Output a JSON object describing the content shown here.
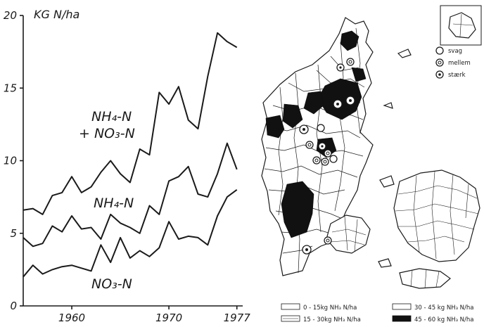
{
  "chart_data": [
    {
      "type": "line",
      "title": "",
      "ylabel": "KG N/ha",
      "xlabel": "",
      "ylim": [
        0,
        20
      ],
      "xlim": [
        1955,
        1977.6
      ],
      "y_ticks": [
        "0",
        "5",
        "10",
        "15",
        "20"
      ],
      "x_ticks": [
        {
          "value": 1960,
          "label": "1960"
        },
        {
          "value": 1970,
          "label": "1970"
        },
        {
          "value": 1977,
          "label": "1977"
        }
      ],
      "x": [
        1955,
        1956,
        1957,
        1958,
        1959,
        1960,
        1961,
        1962,
        1963,
        1964,
        1965,
        1966,
        1967,
        1968,
        1969,
        1970,
        1971,
        1972,
        1973,
        1974,
        1975,
        1976,
        1977
      ],
      "series": [
        {
          "name": "NH4-N + NO3-N",
          "label_lines": [
            "NH₄-N",
            "+ NO₃-N"
          ],
          "values": [
            6.6,
            6.7,
            6.3,
            7.6,
            7.8,
            8.9,
            7.8,
            8.2,
            9.2,
            10.0,
            9.1,
            8.5,
            10.8,
            10.4,
            14.7,
            13.9,
            15.1,
            12.8,
            12.2,
            15.8,
            18.8,
            18.2,
            17.8
          ]
        },
        {
          "name": "NH4-N",
          "label_lines": [
            "NH₄-N"
          ],
          "values": [
            4.7,
            4.1,
            4.3,
            5.5,
            5.1,
            6.2,
            5.3,
            5.4,
            4.6,
            6.3,
            5.7,
            5.4,
            5.0,
            6.9,
            6.3,
            8.6,
            8.9,
            9.6,
            7.7,
            7.5,
            9.1,
            11.2,
            9.4
          ]
        },
        {
          "name": "NO3-N",
          "label_lines": [
            "NO₃-N"
          ],
          "values": [
            2.0,
            2.8,
            2.2,
            2.5,
            2.7,
            2.8,
            2.6,
            2.4,
            4.2,
            3.0,
            4.7,
            3.3,
            3.8,
            3.4,
            4.0,
            5.8,
            4.6,
            4.8,
            4.7,
            4.2,
            6.2,
            7.5,
            8.0
          ]
        }
      ]
    },
    {
      "type": "other",
      "kind": "choropleth-map",
      "legend": {
        "classes": [
          {
            "label": "0 - 15kg  NH₃ N/ha",
            "fill": "#ffffff"
          },
          {
            "label": "15 - 30kg  NH₃ N/ha",
            "fill": "#ffffff"
          },
          {
            "label": "30 - 45 kg  NH₃ N/ha",
            "fill": "#ffffff"
          },
          {
            "label": "45 - 60 kg  NH₃ N/ha",
            "fill": "#111111"
          }
        ],
        "symbols": [
          {
            "label": "svag",
            "icon": "open-circle"
          },
          {
            "label": "mellem",
            "icon": "circle-with-ring"
          },
          {
            "label": "stærk",
            "icon": "circle-with-dot"
          }
        ]
      }
    }
  ]
}
